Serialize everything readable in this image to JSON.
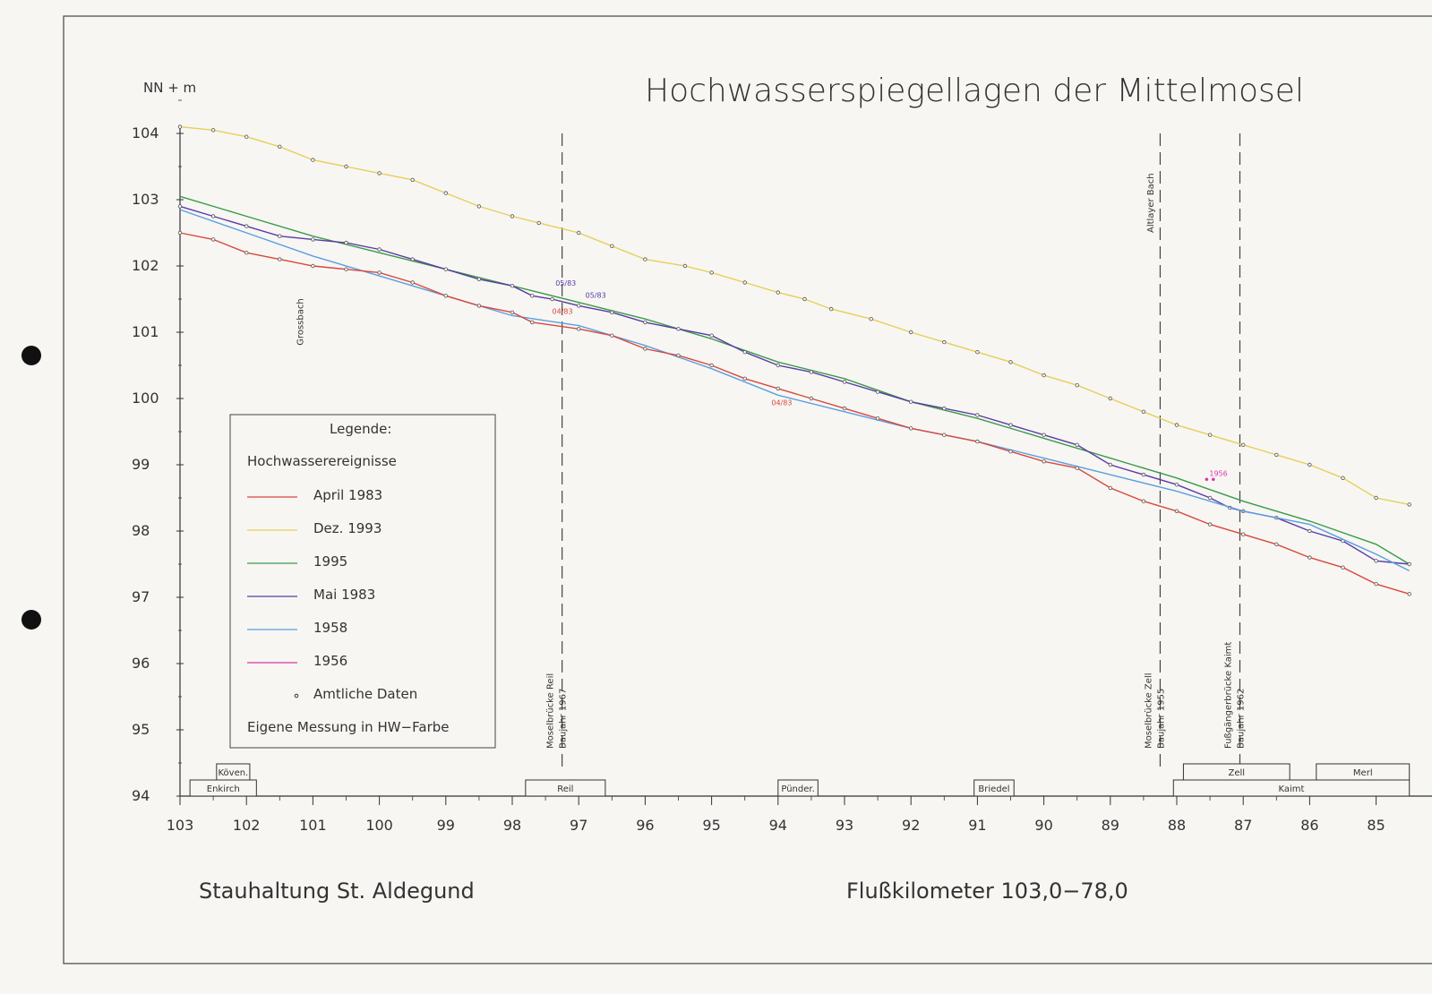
{
  "chart_data": {
    "type": "line",
    "title": "Hochwasserspiegellagen der Mittelmosel",
    "ylabel": "NN + m",
    "xlabel": "Flußkilometer 103,0−78,0",
    "subtitle_left": "Stauhaltung St. Aldegund",
    "xlim": [
      103,
      84.5
    ],
    "ylim": [
      94,
      104.6
    ],
    "x_ticks": [
      103,
      102,
      101,
      100,
      99,
      98,
      97,
      96,
      95,
      94,
      93,
      92,
      91,
      90,
      89,
      88,
      87,
      86,
      85
    ],
    "y_ticks": [
      94,
      95,
      96,
      97,
      98,
      99,
      100,
      101,
      102,
      103,
      104
    ],
    "grid": false,
    "legend": {
      "placement": "left",
      "title": "Legende:",
      "heading": "Hochwasserereignisse",
      "entries": [
        {
          "label": "April 1983",
          "color": "#d9483c"
        },
        {
          "label": "Dez. 1993",
          "color": "#e6cf5a"
        },
        {
          "label": "1995",
          "color": "#3a9a4a"
        },
        {
          "label": "Mai 1983",
          "color": "#5a3aa6"
        },
        {
          "label": "1958",
          "color": "#5a9ee0"
        },
        {
          "label": "1956",
          "color": "#d63aa8"
        }
      ],
      "marker_label": "Amtliche Daten",
      "footer": "Eigene Messung in HW−Farbe"
    },
    "series": [
      {
        "name": "Dez. 1993",
        "color": "#e6cf5a",
        "x": [
          103,
          102.5,
          102,
          101.5,
          101,
          100.5,
          100,
          99.5,
          99,
          98.5,
          98,
          97.6,
          97,
          96.5,
          96,
          95.4,
          95,
          94.5,
          94,
          93.6,
          93.2,
          92.6,
          92,
          91.5,
          91,
          90.5,
          90,
          89.5,
          89,
          88.5,
          88,
          87.5,
          87,
          86.5,
          86,
          85.5,
          85,
          84.5
        ],
        "y": [
          104.1,
          104.05,
          103.95,
          103.8,
          103.6,
          103.5,
          103.4,
          103.3,
          103.1,
          102.9,
          102.75,
          102.65,
          102.5,
          102.3,
          102.1,
          102.0,
          101.9,
          101.75,
          101.6,
          101.5,
          101.35,
          101.2,
          101.0,
          100.85,
          100.7,
          100.55,
          100.35,
          100.2,
          100.0,
          99.8,
          99.6,
          99.45,
          99.3,
          99.15,
          99.0,
          98.8,
          98.5,
          98.4
        ]
      },
      {
        "name": "1995",
        "color": "#3a9a4a",
        "x": [
          103,
          102,
          101,
          100,
          99,
          98,
          97,
          96,
          95,
          94,
          93,
          92,
          91,
          90,
          89,
          88,
          87,
          86,
          85,
          84.5
        ],
        "y": [
          103.05,
          102.75,
          102.45,
          102.2,
          101.95,
          101.7,
          101.45,
          101.2,
          100.9,
          100.55,
          100.3,
          99.95,
          99.7,
          99.4,
          99.1,
          98.8,
          98.45,
          98.15,
          97.8,
          97.5
        ]
      },
      {
        "name": "Mai 1983",
        "color": "#5a3aa6",
        "x": [
          103,
          102.5,
          102,
          101.5,
          101,
          100.5,
          100,
          99.5,
          99,
          98.5,
          98,
          97.7,
          97.4,
          97,
          96.5,
          96,
          95.5,
          95,
          94.5,
          94,
          93.5,
          93,
          92.5,
          92,
          91.5,
          91,
          90.5,
          90,
          89.5,
          89,
          88.5,
          88,
          87.5,
          87.2,
          87,
          86.5,
          86,
          85.5,
          85,
          84.5
        ],
        "y": [
          102.9,
          102.75,
          102.6,
          102.45,
          102.4,
          102.35,
          102.25,
          102.1,
          101.95,
          101.8,
          101.7,
          101.55,
          101.5,
          101.4,
          101.3,
          101.15,
          101.05,
          100.95,
          100.7,
          100.5,
          100.4,
          100.25,
          100.1,
          99.95,
          99.85,
          99.75,
          99.6,
          99.45,
          99.3,
          99.0,
          98.85,
          98.7,
          98.5,
          98.35,
          98.3,
          98.2,
          98.0,
          97.85,
          97.55,
          97.5
        ]
      },
      {
        "name": "1958",
        "color": "#5a9ee0",
        "x": [
          103,
          102,
          101,
          100,
          99,
          98,
          97,
          96,
          95,
          94,
          93,
          92,
          91,
          90,
          89,
          88,
          87,
          86,
          85,
          84.5
        ],
        "y": [
          102.85,
          102.5,
          102.15,
          101.85,
          101.55,
          101.25,
          101.1,
          100.8,
          100.45,
          100.05,
          99.8,
          99.55,
          99.35,
          99.1,
          98.85,
          98.6,
          98.3,
          98.1,
          97.65,
          97.4
        ]
      },
      {
        "name": "April 1983",
        "color": "#d9483c",
        "x": [
          103,
          102.5,
          102,
          101.5,
          101,
          100.5,
          100,
          99.5,
          99,
          98.5,
          98,
          97.7,
          97,
          96.5,
          96,
          95.5,
          95,
          94.5,
          94,
          93.5,
          93,
          92.5,
          92,
          91.5,
          91,
          90.5,
          90,
          89.5,
          89,
          88.5,
          88,
          87.5,
          87,
          86.5,
          86,
          85.5,
          85,
          84.5
        ],
        "y": [
          102.5,
          102.4,
          102.2,
          102.1,
          102.0,
          101.95,
          101.9,
          101.75,
          101.55,
          101.4,
          101.3,
          101.15,
          101.05,
          100.95,
          100.75,
          100.65,
          100.5,
          100.3,
          100.15,
          100.0,
          99.85,
          99.7,
          99.55,
          99.45,
          99.35,
          99.2,
          99.05,
          98.95,
          98.65,
          98.45,
          98.3,
          98.1,
          97.95,
          97.8,
          97.6,
          97.45,
          97.2,
          97.05
        ]
      }
    ],
    "extra_points": [
      {
        "name": "1956",
        "color": "#d63aa8",
        "x": [
          87.55,
          87.45
        ],
        "y": [
          98.78,
          98.78
        ],
        "label": "1956"
      }
    ],
    "annotations": [
      {
        "text": "05/83",
        "x": 97.35,
        "y": 101.7,
        "color": "#5a3aa6"
      },
      {
        "text": "05/83",
        "x": 96.9,
        "y": 101.52,
        "color": "#5a3aa6"
      },
      {
        "text": "04/83",
        "x": 97.4,
        "y": 101.28,
        "color": "#d9483c"
      },
      {
        "text": "04/83",
        "x": 94.1,
        "y": 99.9,
        "color": "#d9483c"
      }
    ],
    "vertical_markers": [
      {
        "x": 97.25,
        "top": 104,
        "bottom": 94.4,
        "labels": [
          "Moselbrücke Reil",
          "Baujahr 1967"
        ]
      },
      {
        "x": 88.25,
        "top": 104,
        "bottom": 94.4,
        "labels": [
          "Moselbrücke Zell",
          "Baujahr 1955"
        ]
      },
      {
        "x": 87.05,
        "top": 104,
        "bottom": 94.4,
        "labels": [
          "Fußgängerbrücke Kaimt",
          "Baujahr 1962"
        ]
      }
    ],
    "stream_labels": [
      {
        "text": "Grossbach",
        "x": 101.15,
        "y": 100.8
      },
      {
        "text": "Altlayer Bach",
        "x": 88.35,
        "y": 102.5
      }
    ],
    "places": [
      {
        "name": "Köven.",
        "x1": 102.45,
        "x2": 101.95,
        "row": 2
      },
      {
        "name": "Enkirch",
        "x1": 102.85,
        "x2": 101.85,
        "row": 1
      },
      {
        "name": "Reil",
        "x1": 97.8,
        "x2": 96.6,
        "row": 1
      },
      {
        "name": "Pünder.",
        "x1": 94.0,
        "x2": 93.4,
        "row": 1
      },
      {
        "name": "Briedel",
        "x1": 91.05,
        "x2": 90.45,
        "row": 1
      },
      {
        "name": "Zell",
        "x1": 87.9,
        "x2": 86.3,
        "row": 2
      },
      {
        "name": "Merl",
        "x1": 85.9,
        "x2": 84.5,
        "row": 2
      },
      {
        "name": "Kaimt",
        "x1": 88.05,
        "x2": 84.5,
        "row": 1
      }
    ]
  }
}
